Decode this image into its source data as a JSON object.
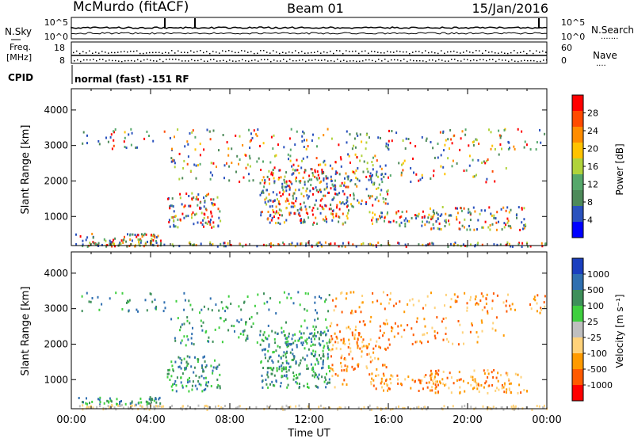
{
  "header": {
    "station": "McMurdo (fitACF)",
    "beam": "Beam 01",
    "date": "15/Jan/2016"
  },
  "status_panels": {
    "nsky_label": "N.Sky",
    "nsearch_label": "N.Search",
    "nsearch_dots": "·······",
    "noise_ticks": [
      "10^5",
      "10^0"
    ],
    "freq_label_line1": "Freq.",
    "freq_label_line2": "[MHz]",
    "freq_ticks": [
      "18",
      "8"
    ],
    "nave_label": "Nave",
    "nave_dots": "····",
    "nave_ticks": [
      "60",
      "0"
    ],
    "cpid_label": "CPID",
    "cpid_value": "normal (fast) -151 RF"
  },
  "colors": {
    "power_scale": [
      "#0000ff",
      "#2a52be",
      "#4e8a5a",
      "#56a86b",
      "#b0d33b",
      "#ffc300",
      "#ff8c00",
      "#ff4a00",
      "#ff0000"
    ],
    "velocity_scale": [
      "#ff0000",
      "#ff5a00",
      "#ff9a00",
      "#ffd27a",
      "#bfbfbf",
      "#3fcf3f",
      "#3e8f5a",
      "#2f6fb0",
      "#1a3fbf"
    ]
  },
  "chart_data": [
    {
      "type": "heatmap",
      "panel": "power",
      "ylabel": "Slant Range [km]",
      "yticks": [
        "1000",
        "2000",
        "3000",
        "4000"
      ],
      "ylim": [
        180,
        4600
      ],
      "xlabel": "Time UT",
      "xticks": [
        "00:00",
        "04:00",
        "08:00",
        "12:00",
        "16:00",
        "20:00",
        "00:00"
      ],
      "xlim_hours": [
        0,
        24
      ],
      "colorbar_label": "Power [dB]",
      "colorbar_ticks": [
        "28",
        "24",
        "20",
        "16",
        "12",
        "8",
        "4"
      ],
      "colorbar_range": [
        0,
        32
      ]
    },
    {
      "type": "heatmap",
      "panel": "velocity",
      "ylabel": "Slant Range [km]",
      "yticks": [
        "1000",
        "2000",
        "3000",
        "4000"
      ],
      "ylim": [
        180,
        4600
      ],
      "xlabel": "Time UT",
      "xticks": [
        "00:00",
        "04:00",
        "08:00",
        "12:00",
        "16:00",
        "20:00",
        "00:00"
      ],
      "xlim_hours": [
        0,
        24
      ],
      "colorbar_label": "Velocity [m s⁻¹]",
      "colorbar_ticks": [
        "1000",
        "500",
        "100",
        "25",
        "-25",
        "-100",
        "-500",
        "-1000"
      ]
    }
  ],
  "axis": {
    "time_label": "Time UT"
  }
}
